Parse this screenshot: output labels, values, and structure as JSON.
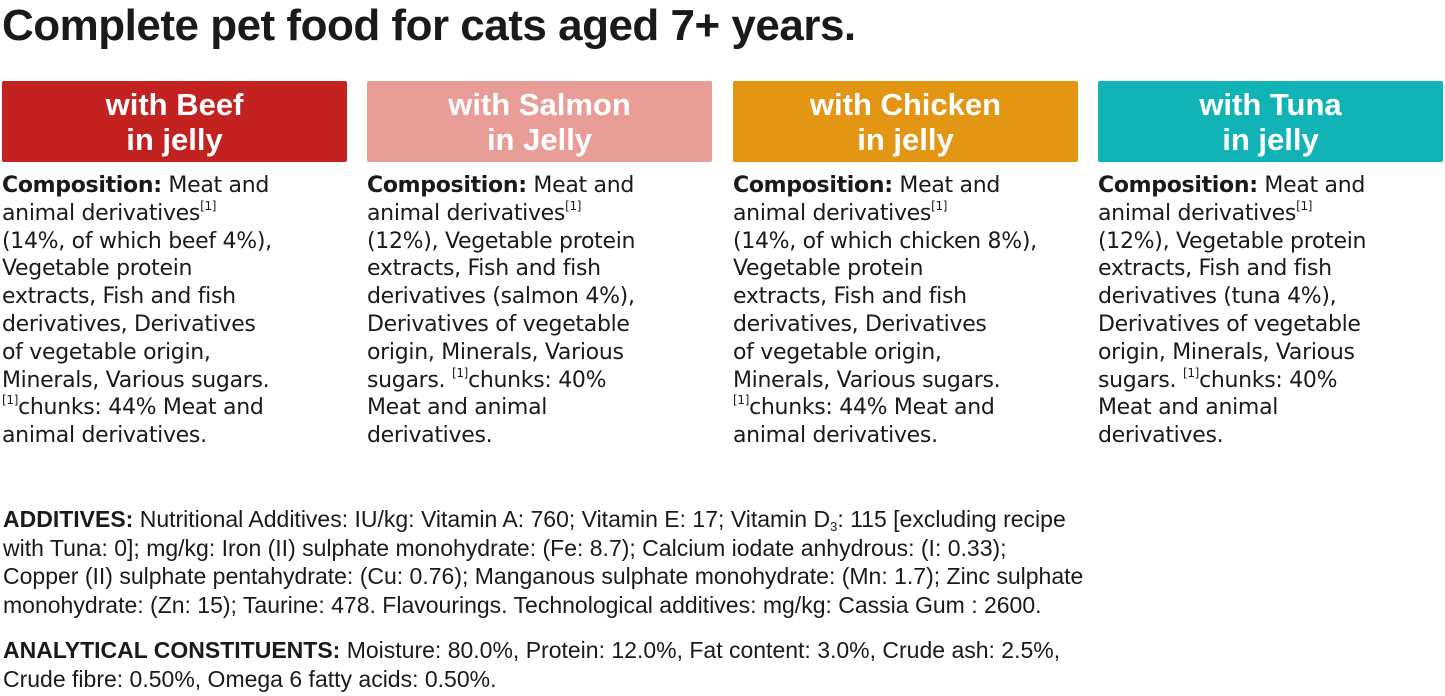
{
  "title": "Complete pet food for cats aged 7+ years.",
  "colors": {
    "beef": "#c42121",
    "salmon": "#e89e96",
    "chicken": "#e39514",
    "tuna": "#12b3b7",
    "text": "#1a1a1a"
  },
  "variants": [
    {
      "header": [
        "with Beef",
        "in jelly"
      ],
      "composition_label": "Composition:",
      "lines": [
        {
          "text": " Meat and"
        },
        {
          "text": "animal derivatives",
          "sup": "[1]"
        },
        {
          "text": "(14%, of which beef 4%),"
        },
        {
          "text": "Vegetable protein"
        },
        {
          "text": "extracts, Fish and fish"
        },
        {
          "text": "derivatives, Derivatives"
        },
        {
          "text": "of vegetable origin,"
        },
        {
          "text": "Minerals, Various sugars."
        },
        {
          "pre_sup": "[1]",
          "text": "chunks: 44% Meat and"
        },
        {
          "text": "animal derivatives."
        }
      ]
    },
    {
      "header": [
        "with Salmon",
        "in Jelly"
      ],
      "composition_label": "Composition:",
      "lines": [
        {
          "text": " Meat and"
        },
        {
          "text": "animal derivatives",
          "sup": "[1]"
        },
        {
          "text": "(12%), Vegetable protein"
        },
        {
          "text": "extracts, Fish and fish"
        },
        {
          "text": "derivatives (salmon 4%),"
        },
        {
          "text": "Derivatives of vegetable"
        },
        {
          "text": "origin, Minerals, Various"
        },
        {
          "text": "sugars. ",
          "mid_sup": "[1]",
          "text2": "chunks: 40%"
        },
        {
          "text": "Meat and animal"
        },
        {
          "text": "derivatives."
        }
      ]
    },
    {
      "header": [
        "with Chicken",
        "in jelly"
      ],
      "composition_label": "Composition:",
      "lines": [
        {
          "text": " Meat and"
        },
        {
          "text": "animal derivatives",
          "sup": "[1]"
        },
        {
          "text": "(14%, of which chicken 8%),"
        },
        {
          "text": "Vegetable protein"
        },
        {
          "text": "extracts, Fish and fish"
        },
        {
          "text": "derivatives, Derivatives"
        },
        {
          "text": "of vegetable origin,"
        },
        {
          "text": "Minerals, Various sugars."
        },
        {
          "pre_sup": "[1]",
          "text": "chunks: 44% Meat and"
        },
        {
          "text": "animal derivatives."
        }
      ]
    },
    {
      "header": [
        "with Tuna",
        "in jelly"
      ],
      "composition_label": "Composition:",
      "lines": [
        {
          "text": " Meat and"
        },
        {
          "text": "animal derivatives",
          "sup": "[1]"
        },
        {
          "text": "(12%), Vegetable protein"
        },
        {
          "text": "extracts, Fish and fish"
        },
        {
          "text": "derivatives (tuna 4%),"
        },
        {
          "text": "Derivatives of vegetable"
        },
        {
          "text": "origin, Minerals, Various"
        },
        {
          "text": "sugars. ",
          "mid_sup": "[1]",
          "text2": "chunks: 40%"
        },
        {
          "text": "Meat and animal"
        },
        {
          "text": "derivatives."
        }
      ]
    }
  ],
  "additives": {
    "label": "ADDITIVES:",
    "line1_a": " Nutritional Additives: IU/kg: Vitamin A: 760; Vitamin E: 17; Vitamin D",
    "line1_sub": "3",
    "line1_b": ": 115 [excluding recipe",
    "line2": "with Tuna: 0]; mg/kg: Iron (II) sulphate monohydrate: (Fe: 8.7); Calcium iodate anhydrous: (I: 0.33);",
    "line3": "Copper (II) sulphate pentahydrate: (Cu: 0.76); Manganous sulphate monohydrate: (Mn: 1.7); Zinc sulphate",
    "line4": "monohydrate: (Zn: 15); Taurine: 478. Flavourings. Technological additives: mg/kg: Cassia Gum : 2600."
  },
  "analytical": {
    "label": "ANALYTICAL CONSTITUENTS:",
    "line1": " Moisture: 80.0%, Protein: 12.0%, Fat content: 3.0%, Crude ash: 2.5%,",
    "line2": "Crude fibre: 0.50%, Omega 6 fatty acids: 0.50%."
  }
}
